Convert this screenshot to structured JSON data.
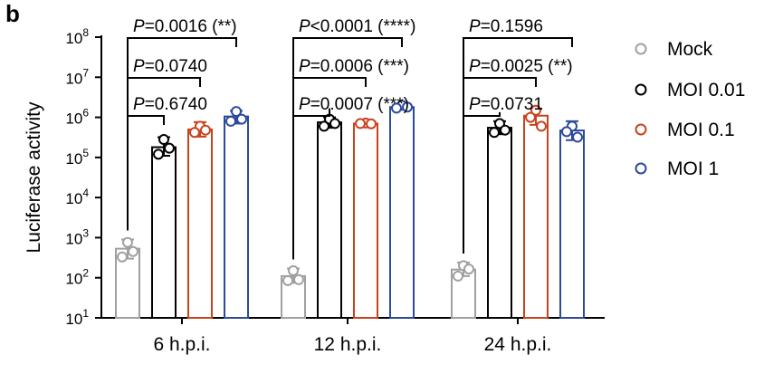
{
  "panel_label": "b",
  "chart_data": {
    "type": "bar",
    "ylabel": "Luciferase activity",
    "xlabel": "",
    "yscale": "log",
    "ylim": [
      10,
      100000000
    ],
    "yticks": [
      {
        "base": "10",
        "exp": "1"
      },
      {
        "base": "10",
        "exp": "2"
      },
      {
        "base": "10",
        "exp": "3"
      },
      {
        "base": "10",
        "exp": "4"
      },
      {
        "base": "10",
        "exp": "5"
      },
      {
        "base": "10",
        "exp": "6"
      },
      {
        "base": "10",
        "exp": "7"
      },
      {
        "base": "10",
        "exp": "8"
      }
    ],
    "categories": [
      "6 h.p.i.",
      "12 h.p.i.",
      "24 h.p.i."
    ],
    "series": [
      {
        "name": "Mock",
        "color": "#a0a0a0",
        "values": [
          530,
          110,
          160
        ],
        "errors": [
          [
            300,
            900
          ],
          [
            75,
            170
          ],
          [
            110,
            240
          ]
        ],
        "points": [
          [
            760,
            330,
            450
          ],
          [
            150,
            85,
            90
          ],
          [
            200,
            110,
            165
          ]
        ]
      },
      {
        "name": "MOI 0.01",
        "color": "#000000",
        "values": [
          180000,
          750000,
          550000
        ],
        "errors": [
          [
            110000,
            320000
          ],
          [
            550000,
            1000000
          ],
          [
            380000,
            800000
          ]
        ],
        "points": [
          [
            280000,
            120000,
            170000
          ],
          [
            900000,
            600000,
            700000
          ],
          [
            700000,
            420000,
            480000
          ]
        ]
      },
      {
        "name": "MOI 0.1",
        "color": "#c8431e",
        "values": [
          500000,
          700000,
          1100000
        ],
        "errors": [
          [
            330000,
            760000
          ],
          [
            620000,
            760000
          ],
          [
            650000,
            1650000
          ]
        ],
        "points": [
          [
            600000,
            420000,
            480000
          ],
          [
            720000,
            700000,
            690000
          ],
          [
            1500000,
            1000000,
            600000
          ]
        ]
      },
      {
        "name": "MOI 1",
        "color": "#2c4a9c",
        "values": [
          1050000,
          1800000,
          470000
        ],
        "errors": [
          [
            700000,
            1450000
          ],
          [
            1600000,
            2000000
          ],
          [
            270000,
            800000
          ]
        ],
        "points": [
          [
            1400000,
            800000,
            900000
          ],
          [
            2000000,
            1700000,
            1800000
          ],
          [
            600000,
            440000,
            320000
          ]
        ]
      }
    ],
    "comparisons": [
      {
        "group": 0,
        "from": 0,
        "to": 1,
        "label": "P=0.6740",
        "level": 1
      },
      {
        "group": 0,
        "from": 0,
        "to": 2,
        "label": "P=0.0740",
        "level": 2
      },
      {
        "group": 0,
        "from": 0,
        "to": 3,
        "label": "P=0.0016 (**)",
        "level": 3
      },
      {
        "group": 1,
        "from": 0,
        "to": 1,
        "label": "P=0.0007 (***)",
        "level": 1
      },
      {
        "group": 1,
        "from": 0,
        "to": 2,
        "label": "P=0.0006 (***)",
        "level": 2
      },
      {
        "group": 1,
        "from": 0,
        "to": 3,
        "label": "P<0.0001 (****)",
        "level": 3
      },
      {
        "group": 2,
        "from": 0,
        "to": 1,
        "label": "P=0.0731",
        "level": 1
      },
      {
        "group": 2,
        "from": 0,
        "to": 2,
        "label": "P=0.0025 (**)",
        "level": 2
      },
      {
        "group": 2,
        "from": 0,
        "to": 3,
        "label": "P=0.1596",
        "level": 3
      }
    ],
    "legend": {
      "position": "right"
    }
  }
}
